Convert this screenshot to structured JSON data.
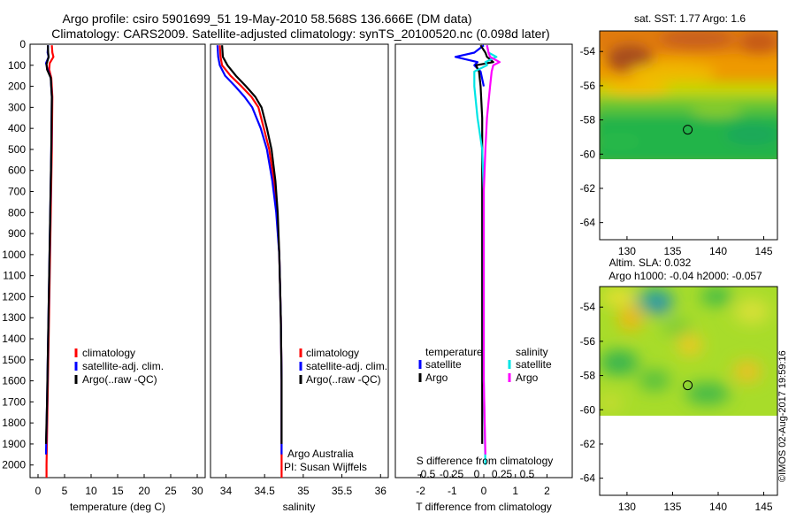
{
  "title": {
    "line1": "Argo profile: csiro 5901699_51 19-May-2010 58.568S 136.666E (DM data)",
    "line2": "Climatology: CARS2009. Satellite-adjusted climatology: synTS_20100520.nc (0.098d later)"
  },
  "credit": "©IMOS 02-Aug-2017 19:59:16",
  "colors": {
    "climatology": "#ff0000",
    "satellite": "#0000ff",
    "argo": "#000000",
    "sal_satellite": "#00e5e5",
    "sal_argo": "#ff00ff"
  },
  "depth_ticks": [
    0,
    100,
    200,
    300,
    400,
    500,
    600,
    700,
    800,
    900,
    1000,
    1100,
    1200,
    1300,
    1400,
    1500,
    1600,
    1700,
    1800,
    1900,
    2000
  ],
  "chart_data": [
    {
      "type": "line",
      "id": "temperature",
      "xlabel": "temperature (deg C)",
      "xlim": [
        -1.5,
        31.5
      ],
      "ylim": [
        2060,
        0
      ],
      "xticks": [
        0,
        5,
        10,
        15,
        20,
        25,
        30
      ],
      "legend": {
        "position": "bottom-center",
        "items": [
          "climatology",
          "satellite-adj. clim.",
          "Argo(..raw -QC)"
        ]
      },
      "series": [
        {
          "name": "climatology",
          "color": "#ff0000",
          "points": [
            [
              2.6,
              5
            ],
            [
              2.7,
              40
            ],
            [
              2.9,
              60
            ],
            [
              2.2,
              90
            ],
            [
              2.1,
              120
            ],
            [
              2.5,
              160
            ],
            [
              2.7,
              250
            ],
            [
              2.6,
              500
            ],
            [
              2.4,
              800
            ],
            [
              2.2,
              1100
            ],
            [
              2.0,
              1400
            ],
            [
              1.8,
              1700
            ],
            [
              1.6,
              2000
            ],
            [
              1.6,
              2060
            ]
          ]
        },
        {
          "name": "satellite-adj. clim.",
          "color": "#0000ff",
          "points": [
            [
              1.9,
              5
            ],
            [
              1.8,
              40
            ],
            [
              2.0,
              60
            ],
            [
              1.5,
              90
            ],
            [
              1.8,
              120
            ],
            [
              2.4,
              160
            ],
            [
              2.6,
              250
            ],
            [
              2.5,
              500
            ],
            [
              2.3,
              800
            ],
            [
              2.1,
              1100
            ],
            [
              1.9,
              1400
            ],
            [
              1.7,
              1700
            ],
            [
              1.5,
              1950
            ]
          ]
        },
        {
          "name": "Argo(..raw -QC)",
          "color": "#000000",
          "points": [
            [
              1.85,
              5
            ],
            [
              1.9,
              40
            ],
            [
              2.0,
              60
            ],
            [
              1.6,
              95
            ],
            [
              1.7,
              120
            ],
            [
              2.4,
              160
            ],
            [
              2.6,
              250
            ],
            [
              2.5,
              500
            ],
            [
              2.3,
              800
            ],
            [
              2.1,
              1100
            ],
            [
              1.9,
              1400
            ],
            [
              1.7,
              1700
            ],
            [
              1.5,
              1900
            ]
          ]
        }
      ]
    },
    {
      "type": "line",
      "id": "salinity",
      "xlabel": "salinity",
      "xlim": [
        33.8,
        36.1
      ],
      "ylim": [
        2060,
        0
      ],
      "xticks": [
        34,
        34.5,
        35,
        35.5,
        36
      ],
      "legend": {
        "position": "bottom-center",
        "items": [
          "climatology",
          "satellite-adj. clim.",
          "Argo(..raw -QC)"
        ]
      },
      "annotation": {
        "line1": "Argo Australia",
        "line2": "PI: Susan Wijffels"
      },
      "series": [
        {
          "name": "climatology",
          "color": "#ff0000",
          "points": [
            [
              33.92,
              5
            ],
            [
              33.93,
              60
            ],
            [
              33.95,
              100
            ],
            [
              34.06,
              150
            ],
            [
              34.2,
              200
            ],
            [
              34.33,
              250
            ],
            [
              34.42,
              300
            ],
            [
              34.49,
              400
            ],
            [
              34.56,
              500
            ],
            [
              34.62,
              650
            ],
            [
              34.66,
              800
            ],
            [
              34.69,
              1000
            ],
            [
              34.71,
              1300
            ],
            [
              34.72,
              1600
            ],
            [
              34.72,
              1900
            ],
            [
              34.72,
              2060
            ]
          ]
        },
        {
          "name": "satellite-adj. clim.",
          "color": "#0000ff",
          "points": [
            [
              33.89,
              5
            ],
            [
              33.9,
              60
            ],
            [
              33.92,
              100
            ],
            [
              33.99,
              150
            ],
            [
              34.12,
              200
            ],
            [
              34.24,
              250
            ],
            [
              34.34,
              300
            ],
            [
              34.45,
              400
            ],
            [
              34.53,
              500
            ],
            [
              34.6,
              650
            ],
            [
              34.65,
              800
            ],
            [
              34.69,
              1000
            ],
            [
              34.71,
              1300
            ],
            [
              34.72,
              1600
            ],
            [
              34.72,
              1950
            ]
          ]
        },
        {
          "name": "Argo(..raw -QC)",
          "color": "#000000",
          "points": [
            [
              33.95,
              5
            ],
            [
              33.96,
              60
            ],
            [
              34.02,
              100
            ],
            [
              34.13,
              150
            ],
            [
              34.26,
              200
            ],
            [
              34.38,
              250
            ],
            [
              34.46,
              300
            ],
            [
              34.53,
              400
            ],
            [
              34.59,
              500
            ],
            [
              34.64,
              650
            ],
            [
              34.67,
              800
            ],
            [
              34.69,
              1000
            ],
            [
              34.71,
              1300
            ],
            [
              34.72,
              1600
            ],
            [
              34.72,
              1900
            ]
          ]
        }
      ]
    },
    {
      "type": "line",
      "id": "difference",
      "xlabel": "T difference from climatology",
      "xlabel_top": "S difference from climatology",
      "xlim": [
        -2.8,
        2.8
      ],
      "ylim": [
        2060,
        0
      ],
      "xticks": [
        -2,
        -1,
        0,
        1,
        2
      ],
      "xticks_top": [
        "-0.5",
        "-0.25",
        "0",
        "0.25",
        "0.5"
      ],
      "legend": {
        "position": "bottom-center",
        "temperature_title": "temperature",
        "salinity_title": "salinity",
        "items": [
          "satellite",
          "Argo",
          "satellite",
          "Argo"
        ]
      },
      "series": [
        {
          "name": "satellite",
          "group": "temperature",
          "color": "#0000ff",
          "points": [
            [
              0,
              5
            ],
            [
              -0.3,
              40
            ],
            [
              -0.9,
              60
            ],
            [
              -0.2,
              85
            ],
            [
              -0.3,
              100
            ],
            [
              -0.1,
              130
            ],
            [
              0,
              200
            ]
          ]
        },
        {
          "name": "Argo",
          "group": "temperature",
          "color": "#000000",
          "points": [
            [
              -0.1,
              5
            ],
            [
              0.05,
              40
            ],
            [
              0.1,
              60
            ],
            [
              0.3,
              85
            ],
            [
              -0.25,
              100
            ],
            [
              -0.15,
              130
            ],
            [
              -0.1,
              200
            ],
            [
              -0.05,
              350
            ],
            [
              -0.05,
              600
            ],
            [
              -0.05,
              1000
            ],
            [
              -0.05,
              1300
            ],
            [
              -0.05,
              1600
            ],
            [
              -0.05,
              1900
            ]
          ]
        },
        {
          "name": "satellite",
          "group": "salinity",
          "color": "#00e5e5",
          "points": [
            [
              0.1,
              5
            ],
            [
              0.15,
              40
            ],
            [
              0.4,
              60
            ],
            [
              0.05,
              85
            ],
            [
              0.1,
              100
            ],
            [
              -0.3,
              130
            ],
            [
              -0.3,
              200
            ],
            [
              -0.2,
              350
            ],
            [
              -0.05,
              500
            ],
            [
              0,
              700
            ],
            [
              0,
              1000
            ],
            [
              0,
              1300
            ],
            [
              0,
              1600
            ],
            [
              0.05,
              2000
            ]
          ]
        },
        {
          "name": "Argo",
          "group": "salinity",
          "color": "#ff00ff",
          "points": [
            [
              0.1,
              5
            ],
            [
              0.15,
              40
            ],
            [
              0.2,
              60
            ],
            [
              0.5,
              85
            ],
            [
              0.3,
              100
            ],
            [
              0.25,
              130
            ],
            [
              0.2,
              200
            ],
            [
              0.1,
              350
            ],
            [
              0.05,
              500
            ],
            [
              0,
              700
            ],
            [
              0,
              1000
            ],
            [
              0,
              1300
            ],
            [
              0,
              1600
            ],
            [
              0.05,
              1950
            ]
          ]
        }
      ]
    },
    {
      "type": "heatmap",
      "id": "sst_map",
      "title": "sat. SST: 1.77 Argo: 1.6",
      "xlim": [
        127,
        146.5
      ],
      "ylim": [
        -65,
        -52.8
      ],
      "xticks": [
        130,
        135,
        140,
        145
      ],
      "yticks": [
        -54,
        -56,
        -58,
        -60,
        -62,
        -64
      ],
      "data_extent_lat": [
        -60,
        -52.8
      ],
      "marker": {
        "lon": 136.666,
        "lat": -58.568
      }
    },
    {
      "type": "heatmap",
      "id": "sla_map",
      "title": "Altim. SLA: 0.032",
      "subtitle": "Argo h1000: -0.04 h2000: -0.057",
      "xlim": [
        127,
        146.5
      ],
      "ylim": [
        -65,
        -52.8
      ],
      "xticks": [
        130,
        135,
        140,
        145
      ],
      "yticks": [
        -54,
        -56,
        -58,
        -60,
        -62,
        -64
      ],
      "data_extent_lat": [
        -60,
        -52.8
      ],
      "marker": {
        "lon": 136.666,
        "lat": -58.568
      }
    }
  ]
}
